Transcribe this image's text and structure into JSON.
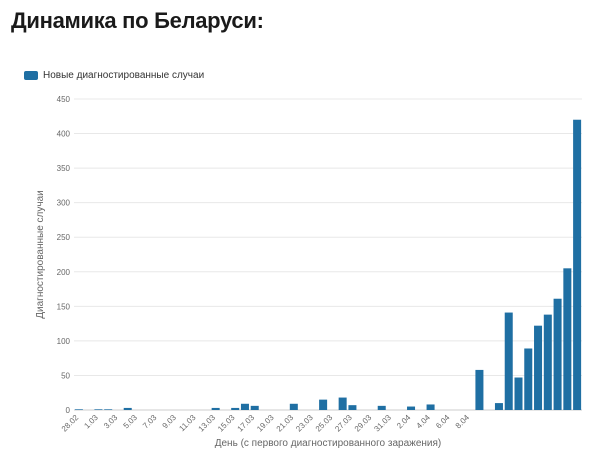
{
  "page": {
    "title": "Динамика по Беларуси:"
  },
  "chart_data": {
    "type": "bar",
    "title": "",
    "legend": {
      "position": "top-left"
    },
    "series": [
      {
        "name": "Новые диагностированные случаи",
        "color": "#1f6fa3",
        "values": [
          1,
          0,
          1,
          1,
          0,
          3,
          0,
          0,
          0,
          0,
          0,
          0,
          0,
          0,
          3,
          0,
          3,
          9,
          6,
          0,
          0,
          0,
          9,
          0,
          0,
          15,
          0,
          18,
          7,
          0,
          0,
          6,
          0,
          0,
          5,
          0,
          8,
          0,
          0,
          0,
          0,
          58,
          0,
          10,
          141,
          47,
          89,
          122,
          138,
          161,
          205,
          420
        ]
      }
    ],
    "categories": [
      "28.02",
      "29.02",
      "1.03",
      "2.03",
      "3.03",
      "4.03",
      "5.03",
      "6.03",
      "7.03",
      "8.03",
      "9.03",
      "10.03",
      "11.03",
      "12.03",
      "13.03",
      "14.03",
      "15.03",
      "16.03",
      "17.03",
      "18.03",
      "19.03",
      "20.03",
      "21.03",
      "22.03",
      "23.03",
      "24.03",
      "25.03",
      "26.03",
      "27.03",
      "28.03",
      "29.03",
      "30.03",
      "31.03",
      "1.04",
      "2.04",
      "3.04",
      "4.04",
      "5.04",
      "6.04",
      "7.04",
      "8.04",
      "9.04",
      "10.04",
      "11.04",
      "12.04",
      "13.04",
      "14.04",
      "15.04",
      "16.04",
      "17.04",
      "18.04",
      "19.04"
    ],
    "x_tick_labels": [
      "28.02",
      "1.03",
      "3.03",
      "5.03",
      "7.03",
      "9.03",
      "11.03",
      "13.03",
      "15.03",
      "17.03",
      "19.03",
      "21.03",
      "23.03",
      "25.03",
      "27.03",
      "29.03",
      "31.03",
      "2.04",
      "4.04",
      "6.04",
      "8.04"
    ],
    "y_ticks": [
      0,
      50,
      100,
      150,
      200,
      250,
      300,
      350,
      400,
      450
    ],
    "ylim": [
      0,
      450
    ],
    "xlabel": "День (с первого диагностированного заражения)",
    "ylabel": "Диагностированные случаи",
    "grid": true
  }
}
